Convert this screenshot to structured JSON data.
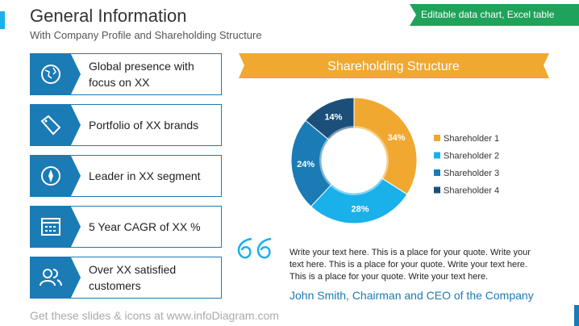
{
  "header": {
    "title": "General Information",
    "subtitle": "With Company Profile and Shareholding Structure",
    "badge": "Editable data chart, Excel table"
  },
  "items": [
    "Global presence with focus on XX",
    "Portfolio of XX brands",
    "Leader in XX segment",
    "5 Year CAGR of XX %",
    "Over XX satisfied customers"
  ],
  "chart_data": {
    "type": "pie",
    "title": "Shareholding Structure",
    "categories": [
      "Shareholder 1",
      "Shareholder 2",
      "Shareholder 3",
      "Shareholder 4"
    ],
    "values": [
      34,
      28,
      24,
      14
    ],
    "value_labels": [
      "34%",
      "28%",
      "24%",
      "14%"
    ],
    "colors": [
      "#f0a830",
      "#1ab0ea",
      "#1a7bb5",
      "#1b4f7a"
    ]
  },
  "quote": {
    "text": "Write your text here. This is a place for your quote. Write your text here. This is a place for your quote. Write your text here. This is a place for your quote. Write your text here.",
    "author": "John Smith, Chairman and CEO of the Company"
  },
  "footer": "Get these slides & icons at www.infoDiagram.com"
}
